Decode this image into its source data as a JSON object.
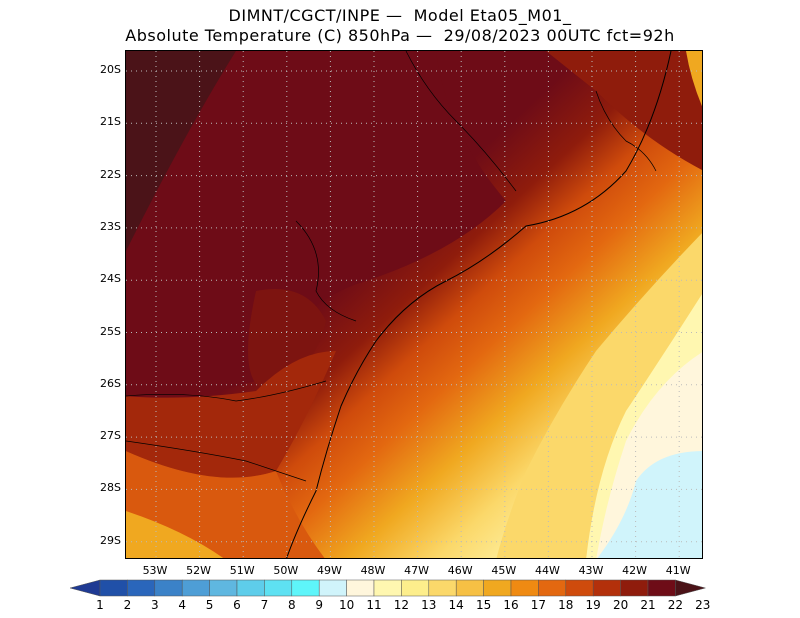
{
  "title": {
    "line1": "DIMNT/CGCT/INPE —  Model Eta05_M01_",
    "line2": "Absolute Temperature (C) 850hPa —  29/08/2023 00UTC fct=92h"
  },
  "map": {
    "lat_labels": [
      "20S",
      "21S",
      "22S",
      "23S",
      "24S",
      "25S",
      "26S",
      "27S",
      "28S",
      "29S"
    ],
    "lon_labels": [
      "53W",
      "52W",
      "51W",
      "50W",
      "49W",
      "48W",
      "47W",
      "46W",
      "45W",
      "44W",
      "43W",
      "42W",
      "41W"
    ]
  },
  "colorbar": {
    "labels": [
      "1",
      "2",
      "3",
      "4",
      "5",
      "6",
      "7",
      "8",
      "9",
      "10",
      "11",
      "12",
      "13",
      "14",
      "15",
      "16",
      "17",
      "18",
      "19",
      "20",
      "21",
      "22",
      "23"
    ],
    "colors": [
      "#1f3a93",
      "#2050a8",
      "#2a66bb",
      "#3b82c8",
      "#4e9ed6",
      "#5fb7e0",
      "#5ecdea",
      "#5ee1f2",
      "#5ef5fa",
      "#d0f4fb",
      "#fff6dc",
      "#fff7b0",
      "#fdee8c",
      "#fbd86a",
      "#f6c044",
      "#f0a820",
      "#ef8a12",
      "#e36810",
      "#cf4b0c",
      "#b3300b",
      "#8f1c0c",
      "#6e0c17",
      "#4b1318"
    ]
  }
}
